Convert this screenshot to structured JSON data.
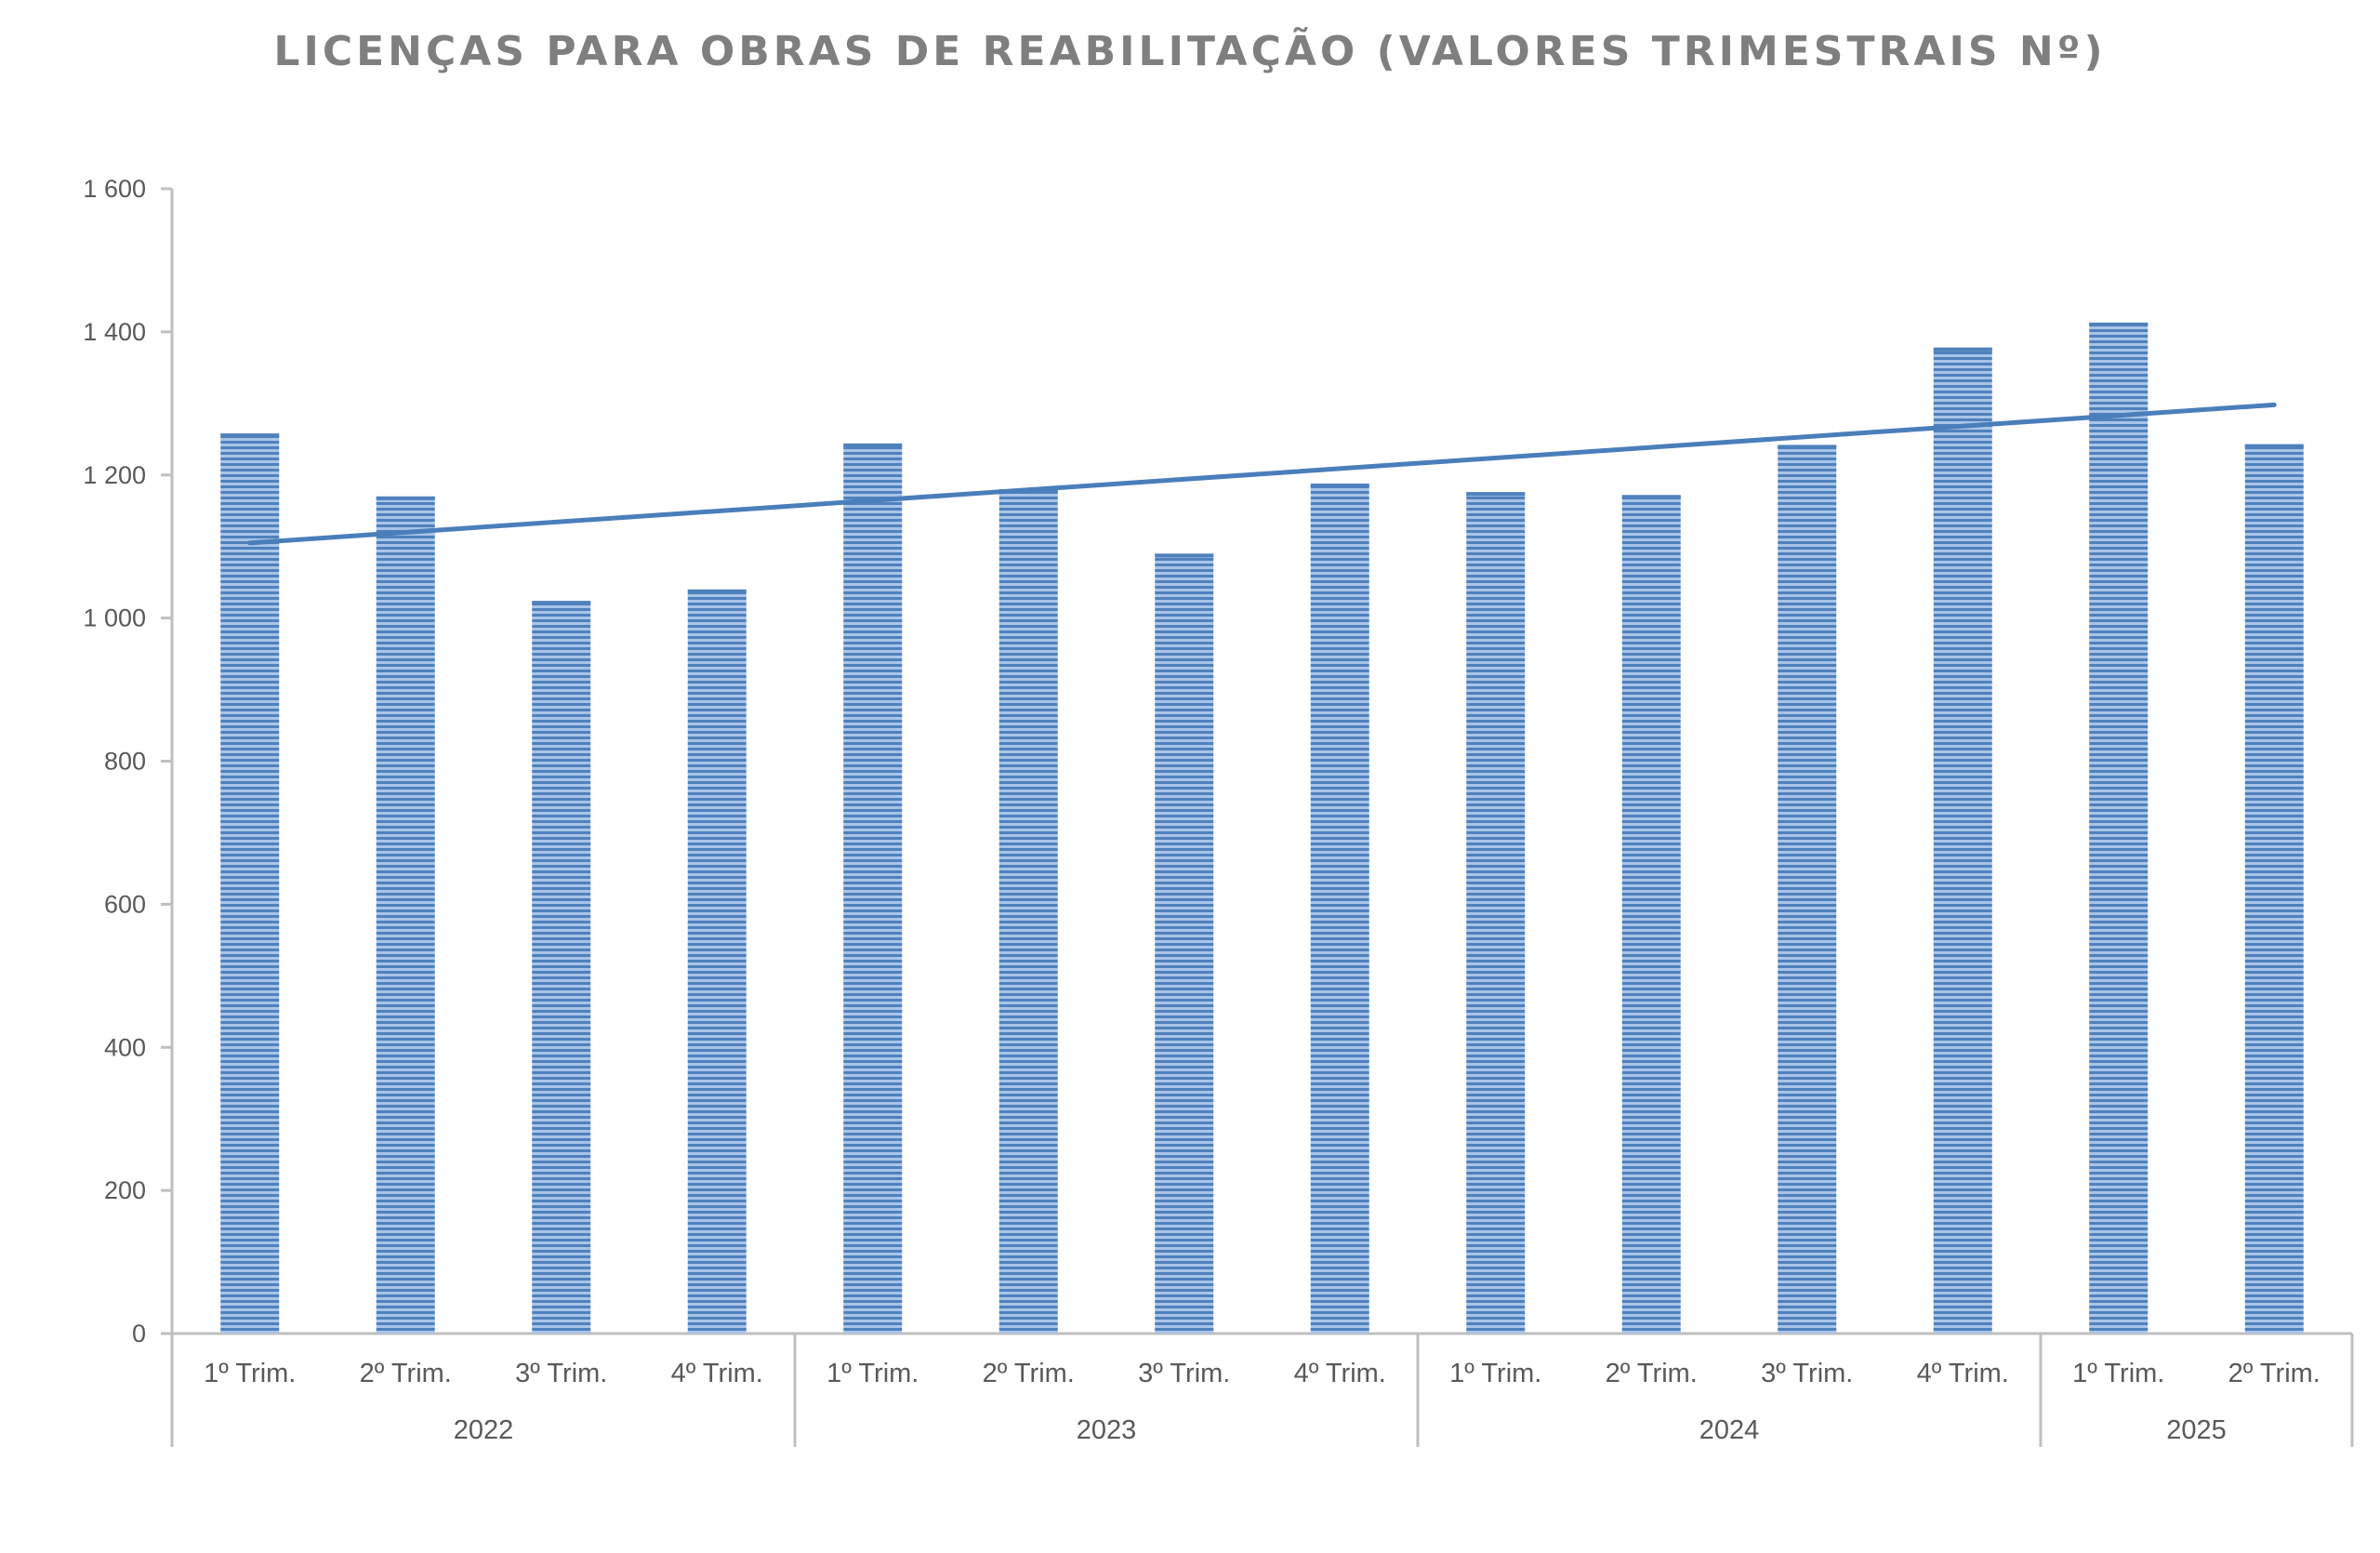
{
  "chart_data": {
    "type": "bar",
    "title": "LICENÇAS PARA OBRAS DE REABILITAÇÃO (VALORES TRIMESTRAIS Nº)",
    "xlabel": "",
    "ylabel": "",
    "ylim": [
      0,
      1600
    ],
    "yticks": [
      0,
      200,
      400,
      600,
      800,
      1000,
      1200,
      1400,
      1600
    ],
    "ytick_labels": [
      "0",
      "200",
      "400",
      "600",
      "800",
      "1 000",
      "1 200",
      "1 400",
      "1 600"
    ],
    "categories": [
      "1º Trim.",
      "2º Trim.",
      "3º Trim.",
      "4º Trim.",
      "1º Trim.",
      "2º Trim.",
      "3º Trim.",
      "4º Trim.",
      "1º Trim.",
      "2º Trim.",
      "3º Trim.",
      "4º Trim.",
      "1º Trim.",
      "2º Trim."
    ],
    "groups": [
      {
        "label": "2022",
        "count": 4
      },
      {
        "label": "2023",
        "count": 4
      },
      {
        "label": "2024",
        "count": 4
      },
      {
        "label": "2025",
        "count": 2
      }
    ],
    "values": [
      1258,
      1170,
      1024,
      1040,
      1244,
      1180,
      1090,
      1188,
      1176,
      1172,
      1242,
      1378,
      1413,
      1243
    ],
    "trendline": {
      "type": "linear",
      "start": 1105,
      "end": 1298
    },
    "grid": false,
    "legend": "none",
    "colors": {
      "bar": "#4f81bd",
      "bar_light": "#a9c4e8",
      "trend": "#4a7ebb",
      "axis": "#bfbfbf",
      "title": "#7f7f7f"
    }
  }
}
